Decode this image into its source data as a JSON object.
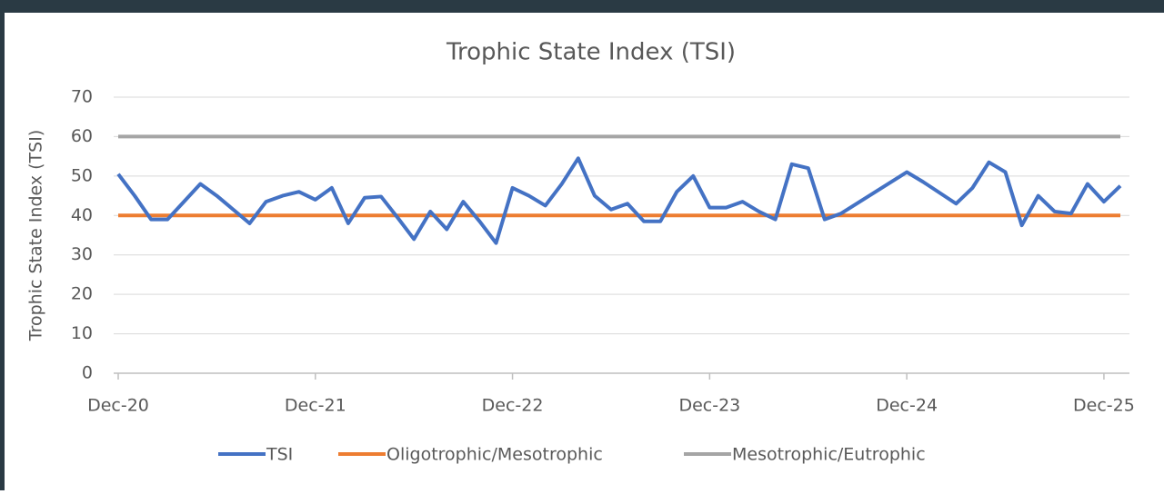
{
  "chart_data": {
    "type": "line",
    "title": "Trophic State Index (TSI)",
    "ylabel": "Trophic State Index (TSI)",
    "x": [
      "Dec-20",
      "Jan-21",
      "Feb-21",
      "Mar-21",
      "Apr-21",
      "May-21",
      "Jun-21",
      "Jul-21",
      "Aug-21",
      "Sep-21",
      "Oct-21",
      "Nov-21",
      "Dec-21",
      "Jan-22",
      "Feb-22",
      "Mar-22",
      "Apr-22",
      "May-22",
      "Jun-22",
      "Jul-22",
      "Aug-22",
      "Sep-22",
      "Oct-22",
      "Nov-22",
      "Dec-22",
      "Jan-23",
      "Feb-23",
      "Mar-23",
      "Apr-23",
      "May-23",
      "Jun-23",
      "Jul-23",
      "Aug-23",
      "Sep-23",
      "Oct-23",
      "Nov-23",
      "Dec-23",
      "Jan-24",
      "Feb-24",
      "Mar-24",
      "Apr-24",
      "May-24",
      "Jun-24",
      "Jul-24",
      "Aug-24",
      "Dec-24",
      "Jan-25",
      "Mar-25",
      "Apr-25",
      "May-25",
      "Jun-25",
      "Jul-25",
      "Aug-25",
      "Sep-25",
      "Oct-25",
      "Nov-25",
      "Dec-25",
      "Jan-26"
    ],
    "series": [
      {
        "name": "TSI",
        "color": "#4472c4",
        "values": [
          50.5,
          45,
          39,
          39,
          43.5,
          48,
          45,
          41.5,
          38,
          43.5,
          45,
          46,
          44,
          47,
          38,
          44.5,
          44.8,
          39.5,
          34,
          41,
          36.5,
          43.5,
          38.5,
          33,
          47,
          45,
          42.5,
          48,
          54.5,
          45,
          41.5,
          43,
          38.5,
          38.5,
          46,
          50,
          42,
          42,
          43.5,
          41,
          39,
          53,
          52,
          39,
          40.5,
          51,
          48.5,
          43,
          47,
          53.5,
          51,
          37.5,
          45,
          41,
          40.5,
          48,
          43.5,
          47.5
        ]
      },
      {
        "name": "Oligotrophic/Mesotrophic",
        "color": "#ed7d31",
        "x": [
          "Dec-20",
          "Jan-26"
        ],
        "values": [
          40,
          40
        ]
      },
      {
        "name": "Mesotrophic/Eutrophic",
        "color": "#a5a5a5",
        "x": [
          "Dec-20",
          "Jan-26"
        ],
        "values": [
          60,
          60
        ]
      }
    ],
    "xlim": [
      "Dec-20",
      "Jan-26"
    ],
    "xticks": [
      "Dec-20",
      "Dec-21",
      "Dec-22",
      "Dec-23",
      "Dec-24",
      "Dec-25"
    ],
    "ylim": [
      0,
      70
    ],
    "yticks": [
      0,
      10,
      20,
      30,
      40,
      50,
      60,
      70
    ],
    "grid": true,
    "legend": "bottom"
  }
}
